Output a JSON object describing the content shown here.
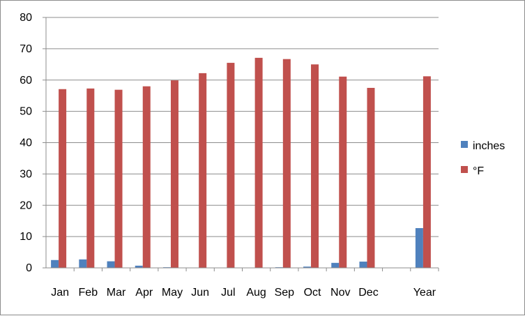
{
  "chart_data": {
    "type": "bar",
    "categories": [
      "Jan",
      "Feb",
      "Mar",
      "Apr",
      "May",
      "Jun",
      "Jul",
      "Aug",
      "Sep",
      "Oct",
      "Nov",
      "Dec",
      "",
      "Year"
    ],
    "series": [
      {
        "name": "inches",
        "color": "#4f81bd",
        "values": [
          2.5,
          2.7,
          2.1,
          0.7,
          0.2,
          0.1,
          0.0,
          0.1,
          0.2,
          0.4,
          1.6,
          2.0,
          null,
          12.7
        ]
      },
      {
        "name": "°F",
        "color": "#c0504d",
        "values": [
          57.1,
          57.3,
          56.9,
          58.0,
          59.9,
          62.2,
          65.5,
          67.1,
          66.7,
          65.0,
          61.1,
          57.5,
          null,
          61.2
        ]
      }
    ],
    "yticks": [
      0,
      10,
      20,
      30,
      40,
      50,
      60,
      70,
      80
    ],
    "ylim": [
      0,
      80
    ],
    "title": "",
    "xlabel": "",
    "ylabel": "",
    "grid": true,
    "legend": "right"
  }
}
